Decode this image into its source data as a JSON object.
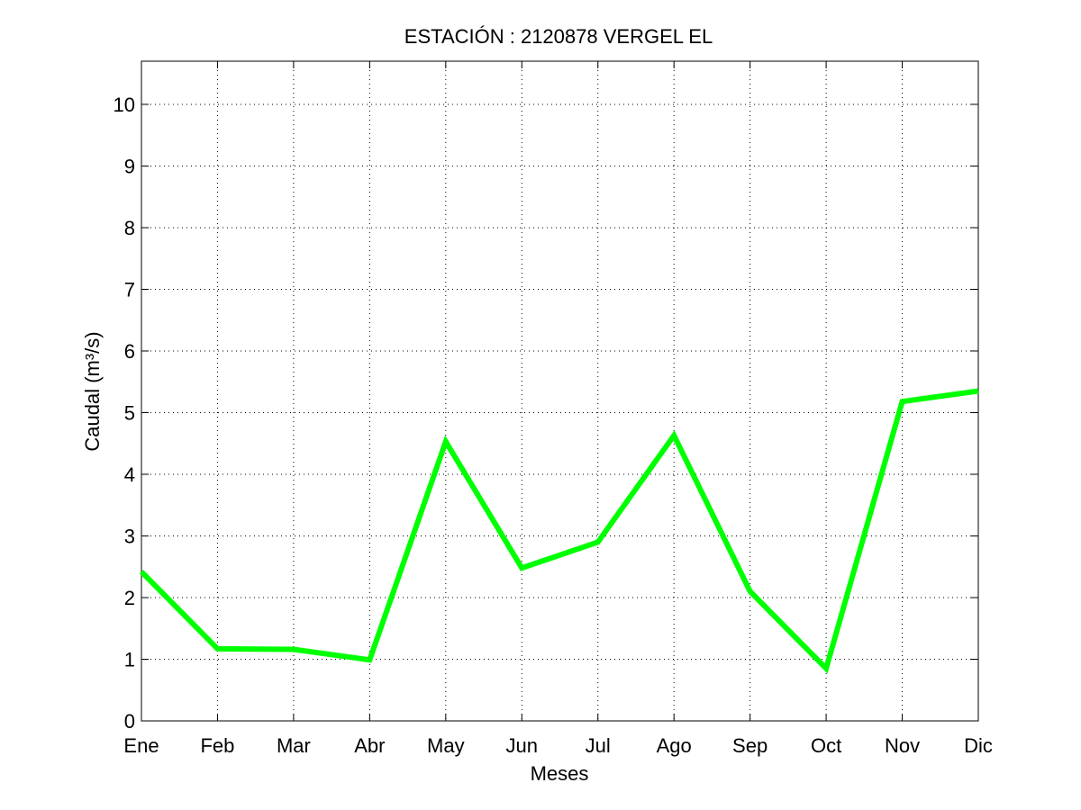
{
  "chart_data": {
    "type": "line",
    "title": "ESTACIÓN :  2120878  VERGEL EL",
    "xlabel": "Meses",
    "ylabel": "Caudal (m³/s)",
    "categories": [
      "Ene",
      "Feb",
      "Mar",
      "Abr",
      "May",
      "Jun",
      "Jul",
      "Ago",
      "Sep",
      "Oct",
      "Nov",
      "Dic"
    ],
    "series": [
      {
        "values": [
          2.42,
          1.17,
          1.16,
          0.99,
          4.53,
          2.48,
          2.9,
          4.63,
          2.1,
          0.85,
          5.18,
          5.35
        ],
        "color": "#00ff00"
      }
    ],
    "ylim": [
      0,
      10.7
    ],
    "yticks": [
      0,
      1,
      2,
      3,
      4,
      5,
      6,
      7,
      8,
      9,
      10
    ],
    "grid": true,
    "grid_style": "dotted",
    "legend": "none"
  }
}
